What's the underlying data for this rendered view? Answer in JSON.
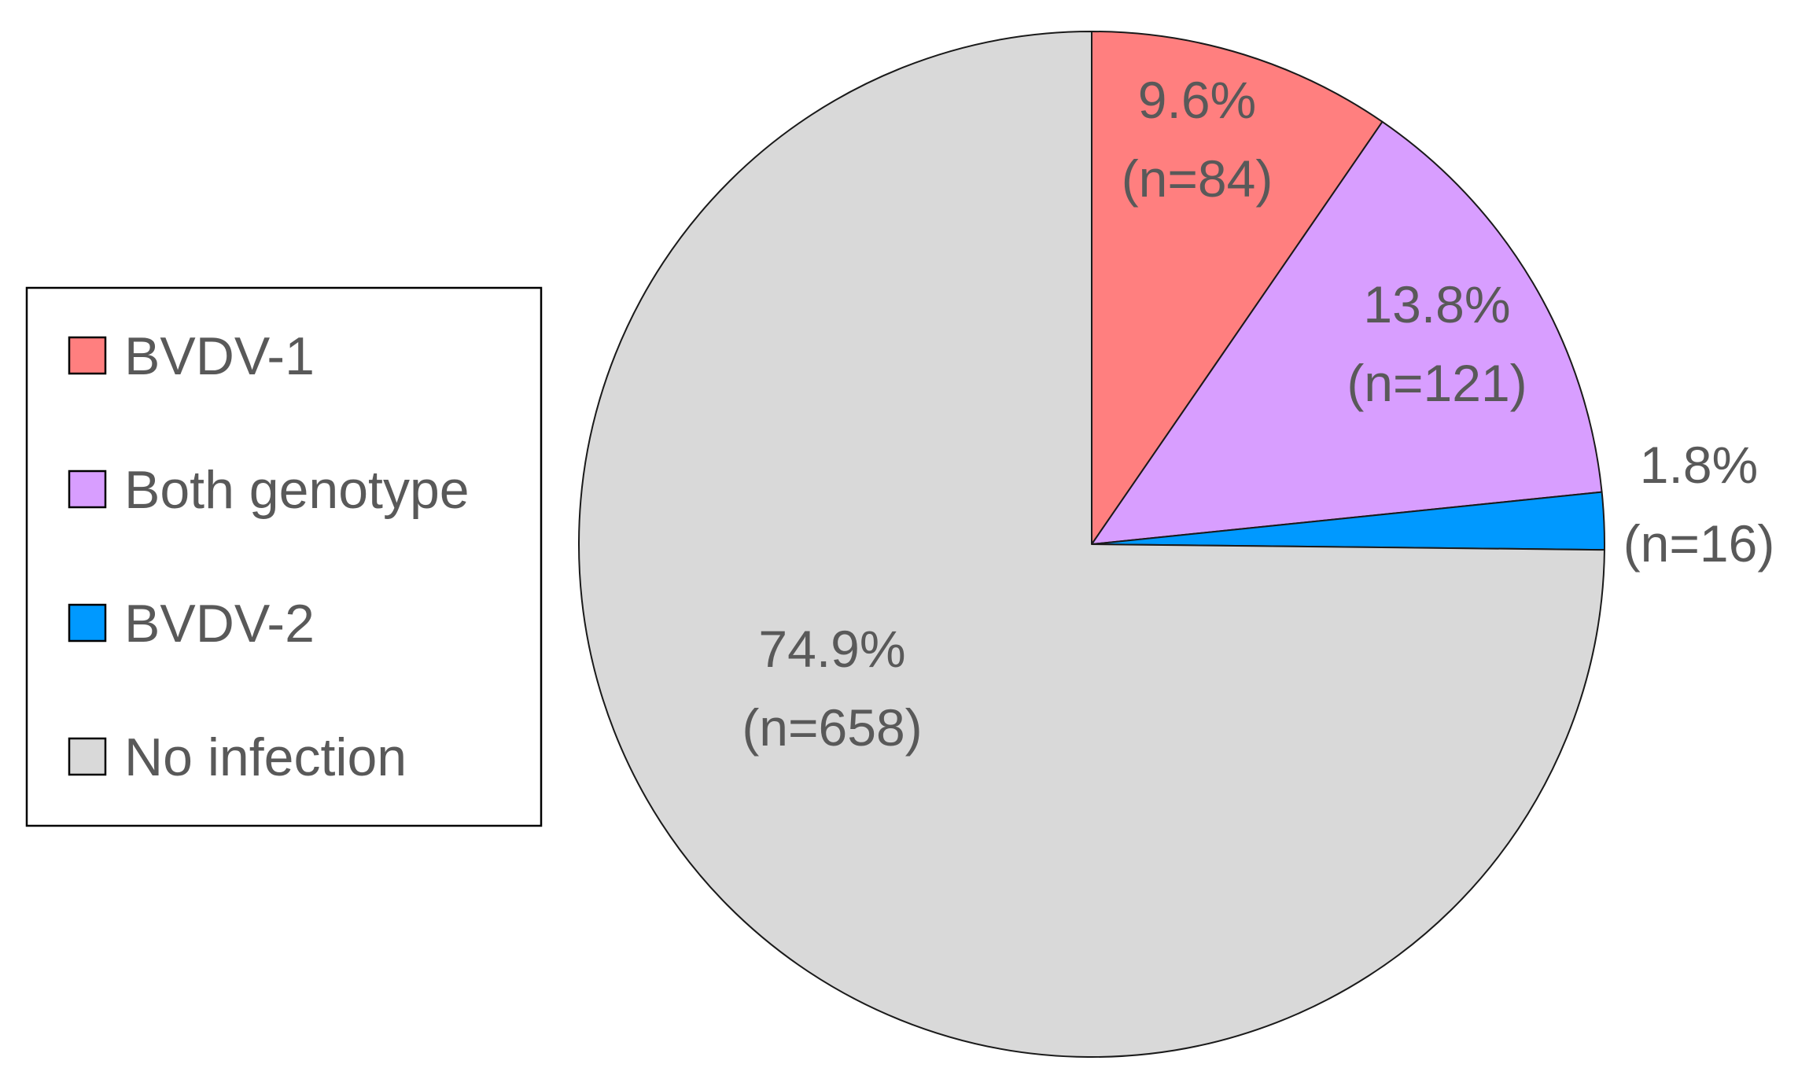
{
  "chart_data": {
    "type": "pie",
    "title": "",
    "start_angle_deg": 90,
    "direction": "clockwise",
    "legend_position": "left",
    "slices": [
      {
        "name": "BVDV-1",
        "percent": 9.6,
        "n": 84,
        "label_pct": "9.6%",
        "label_n": "(n=84)",
        "color": "#ff7f7f"
      },
      {
        "name": "Both genotype",
        "percent": 13.8,
        "n": 121,
        "label_pct": "13.8%",
        "label_n": "(n=121)",
        "color": "#d89eff"
      },
      {
        "name": "BVDV-2",
        "percent": 1.8,
        "n": 16,
        "label_pct": "1.8%",
        "label_n": "(n=16)",
        "color": "#0099ff"
      },
      {
        "name": "No infection",
        "percent": 74.9,
        "n": 658,
        "label_pct": "74.9%",
        "label_n": "(n=658)",
        "color": "#d9d9d9"
      }
    ]
  }
}
